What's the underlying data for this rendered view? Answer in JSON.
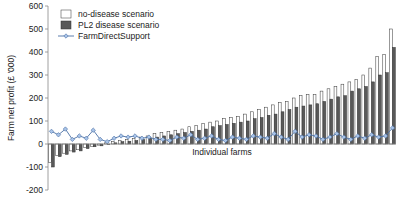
{
  "chart_data": {
    "type": "bar",
    "x_label": "Individual farms",
    "y_label": "Farm net profit (£ '000)",
    "categories": [
      null,
      null,
      null,
      null,
      null,
      null,
      null,
      null,
      null,
      null,
      null,
      null,
      null,
      null,
      null,
      null,
      null,
      null,
      null,
      null,
      null,
      null,
      null,
      null,
      null,
      null,
      null,
      null,
      null,
      null,
      null,
      null,
      null,
      null,
      null,
      null,
      null,
      null,
      null,
      null,
      null,
      null,
      null,
      null,
      null,
      null,
      null,
      null,
      null,
      null
    ],
    "series": [
      {
        "name": "no-disease scenario",
        "color": "#ffffff",
        "type": "bar",
        "values": [
          -80,
          -50,
          -40,
          -30,
          -25,
          -15,
          -10,
          -5,
          5,
          10,
          15,
          20,
          25,
          30,
          35,
          45,
          50,
          55,
          60,
          65,
          75,
          80,
          90,
          95,
          100,
          110,
          115,
          120,
          130,
          140,
          150,
          160,
          170,
          180,
          185,
          200,
          210,
          215,
          215,
          230,
          240,
          250,
          260,
          270,
          280,
          300,
          330,
          380,
          390,
          500
        ]
      },
      {
        "name": "PL2 disease scenario",
        "color": "#595959",
        "type": "bar",
        "values": [
          -100,
          -55,
          -45,
          -35,
          -30,
          -20,
          -12,
          -8,
          0,
          5,
          10,
          12,
          15,
          20,
          25,
          30,
          35,
          40,
          45,
          50,
          55,
          60,
          65,
          75,
          80,
          85,
          90,
          95,
          100,
          110,
          115,
          125,
          130,
          140,
          150,
          160,
          165,
          170,
          175,
          185,
          195,
          205,
          210,
          230,
          240,
          250,
          270,
          300,
          310,
          420
        ]
      },
      {
        "name": "FarmDirectSupport",
        "color": "#4a6fa5",
        "type": "line",
        "marker": "diamond",
        "values": [
          55,
          40,
          65,
          20,
          35,
          25,
          60,
          20,
          10,
          25,
          35,
          30,
          35,
          25,
          30,
          20,
          20,
          15,
          30,
          25,
          40,
          20,
          25,
          35,
          20,
          15,
          30,
          25,
          20,
          35,
          30,
          25,
          45,
          30,
          20,
          55,
          30,
          40,
          35,
          20,
          30,
          45,
          30,
          20,
          35,
          25,
          40,
          30,
          35,
          70
        ]
      }
    ],
    "ylim": [
      -200,
      600
    ],
    "yticks": [
      -200,
      -100,
      0,
      100,
      200,
      300,
      400,
      500,
      600
    ],
    "grid": false,
    "legend": "top-left"
  }
}
